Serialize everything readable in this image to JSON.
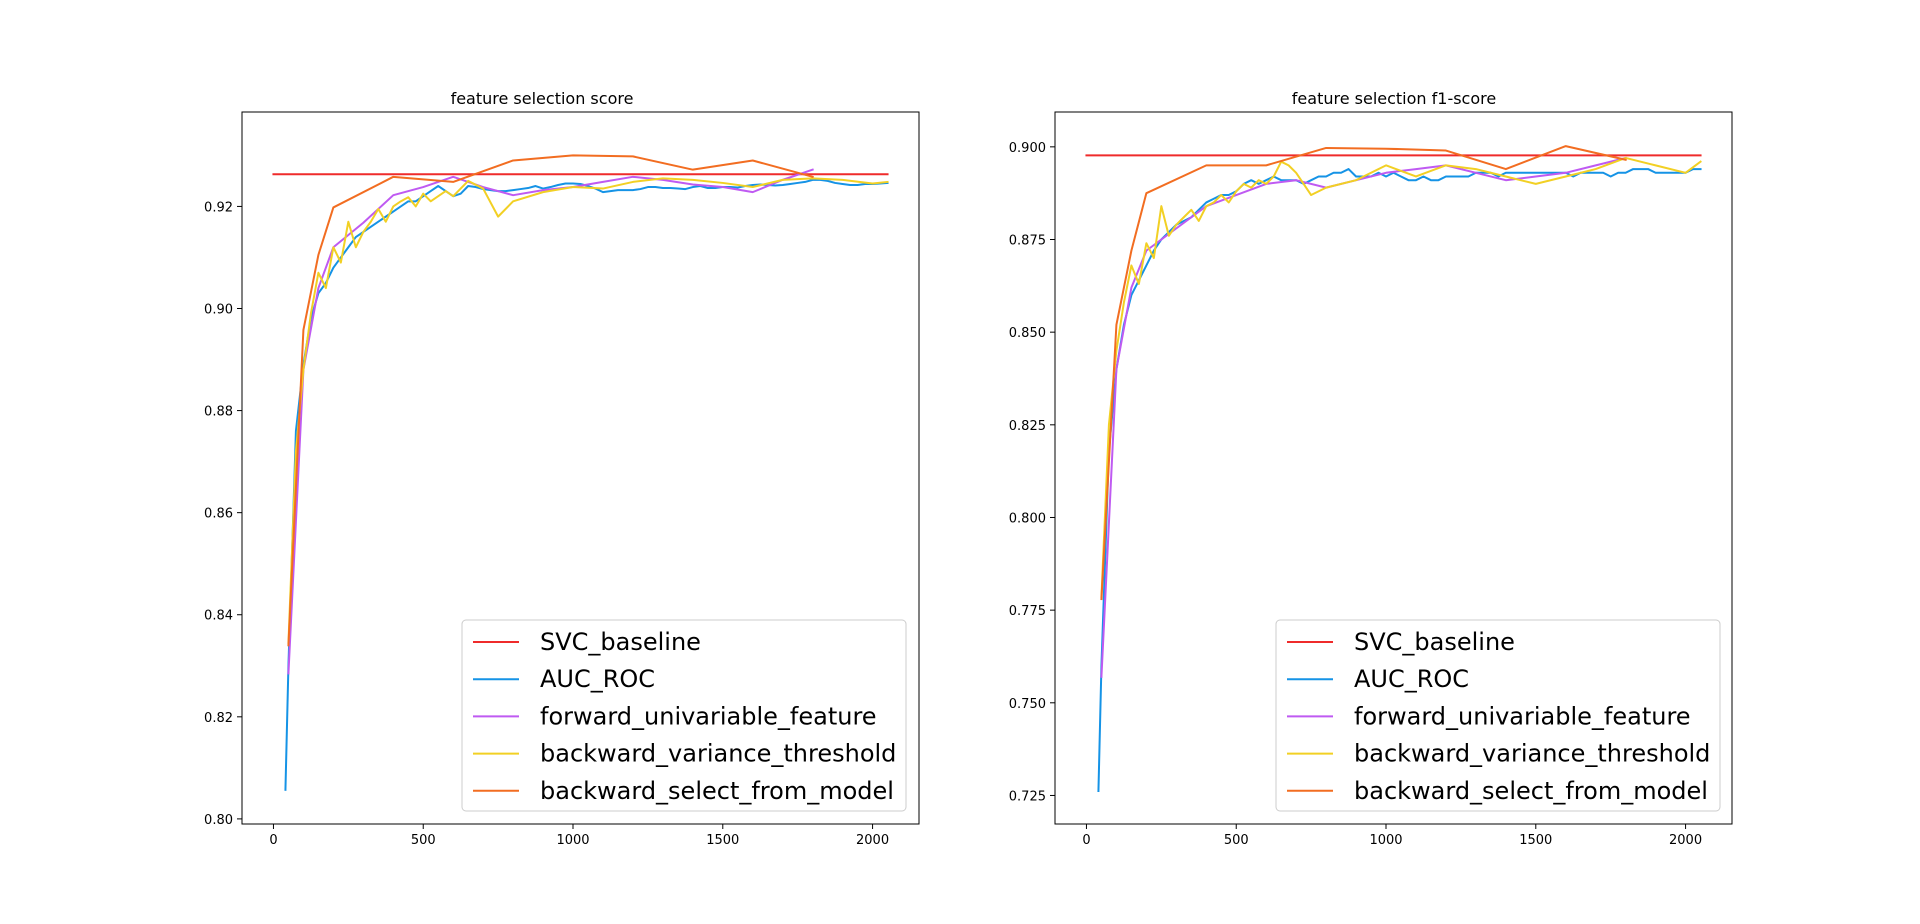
{
  "figure": {
    "background": "#ffffff"
  },
  "chart_data": [
    {
      "type": "line",
      "title": "feature selection score",
      "xlabel": "",
      "ylabel": "",
      "xlim": [
        -105,
        2155
      ],
      "ylim": [
        0.799,
        0.9385
      ],
      "xticks": [
        0,
        500,
        1000,
        1500,
        2000
      ],
      "yticks": [
        0.8,
        0.82,
        0.84,
        0.86,
        0.88,
        0.9,
        0.92
      ],
      "ytick_labels": [
        "0.80",
        "0.82",
        "0.84",
        "0.86",
        "0.88",
        "0.90",
        "0.92"
      ],
      "grid": false,
      "legend_position": "lower right",
      "series": [
        {
          "name": "SVC_baseline",
          "color": "#ef2b2b",
          "x": [
            0,
            2050
          ],
          "y": [
            0.9263,
            0.9263
          ]
        },
        {
          "name": "AUC_ROC",
          "color": "#1593e6",
          "x": [
            40,
            50,
            75,
            100,
            125,
            150,
            175,
            200,
            225,
            250,
            275,
            300,
            325,
            350,
            375,
            400,
            425,
            450,
            475,
            500,
            525,
            550,
            575,
            600,
            625,
            650,
            675,
            700,
            725,
            750,
            775,
            800,
            825,
            850,
            875,
            900,
            925,
            950,
            975,
            1000,
            1025,
            1050,
            1075,
            1100,
            1125,
            1150,
            1175,
            1200,
            1225,
            1250,
            1275,
            1300,
            1325,
            1350,
            1375,
            1400,
            1425,
            1450,
            1475,
            1500,
            1525,
            1550,
            1575,
            1600,
            1625,
            1650,
            1675,
            1700,
            1725,
            1750,
            1775,
            1800,
            1825,
            1850,
            1875,
            1900,
            1925,
            1950,
            1975,
            2000,
            2025,
            2050
          ],
          "y": [
            0.8057,
            0.83,
            0.876,
            0.889,
            0.898,
            0.903,
            0.905,
            0.908,
            0.91,
            0.912,
            0.914,
            0.915,
            0.916,
            0.917,
            0.918,
            0.919,
            0.92,
            0.921,
            0.921,
            0.922,
            0.923,
            0.924,
            0.923,
            0.922,
            0.9225,
            0.924,
            0.9238,
            0.9234,
            0.9232,
            0.923,
            0.923,
            0.9232,
            0.9234,
            0.9236,
            0.924,
            0.9235,
            0.9238,
            0.9242,
            0.9245,
            0.9245,
            0.9244,
            0.924,
            0.9235,
            0.9228,
            0.923,
            0.9232,
            0.9232,
            0.9232,
            0.9234,
            0.9238,
            0.9238,
            0.9236,
            0.9236,
            0.9235,
            0.9234,
            0.9238,
            0.924,
            0.9236,
            0.9236,
            0.9238,
            0.9238,
            0.9237,
            0.924,
            0.9242,
            0.9243,
            0.9242,
            0.9241,
            0.9242,
            0.9244,
            0.9246,
            0.9248,
            0.9252,
            0.9252,
            0.925,
            0.9246,
            0.9244,
            0.9242,
            0.9242,
            0.9244,
            0.9244,
            0.9245,
            0.9246
          ]
        },
        {
          "name": "forward_univariable_feature",
          "color": "#bf5af2",
          "x": [
            50,
            100,
            150,
            200,
            300,
            400,
            500,
            600,
            700,
            800,
            900,
            1000,
            1100,
            1200,
            1300,
            1400,
            1500,
            1600,
            1700,
            1800
          ],
          "y": [
            0.8285,
            0.888,
            0.904,
            0.912,
            0.9168,
            0.9222,
            0.9238,
            0.9258,
            0.9238,
            0.9222,
            0.9232,
            0.9238,
            0.9248,
            0.9258,
            0.9252,
            0.9243,
            0.9238,
            0.9228,
            0.9252,
            0.9272
          ]
        },
        {
          "name": "backward_variance_threshold",
          "color": "#f2d024",
          "x": [
            50,
            75,
            100,
            125,
            150,
            175,
            200,
            225,
            250,
            275,
            300,
            325,
            350,
            375,
            400,
            425,
            450,
            475,
            500,
            525,
            550,
            575,
            600,
            650,
            700,
            750,
            800,
            900,
            1000,
            1100,
            1200,
            1300,
            1400,
            1500,
            1600,
            1700,
            1800,
            1900,
            2000,
            2050
          ],
          "y": [
            0.8345,
            0.872,
            0.888,
            0.899,
            0.907,
            0.904,
            0.912,
            0.909,
            0.917,
            0.912,
            0.915,
            0.917,
            0.9195,
            0.917,
            0.92,
            0.921,
            0.9218,
            0.92,
            0.9225,
            0.921,
            0.922,
            0.923,
            0.922,
            0.925,
            0.9235,
            0.918,
            0.921,
            0.9228,
            0.9238,
            0.9235,
            0.9248,
            0.9255,
            0.9252,
            0.9246,
            0.9238,
            0.9252,
            0.9255,
            0.9252,
            0.9245,
            0.9248
          ]
        },
        {
          "name": "backward_select_from_model",
          "color": "#f26d21",
          "x": [
            50,
            100,
            150,
            200,
            400,
            600,
            800,
            1000,
            1200,
            1400,
            1600,
            1800
          ],
          "y": [
            0.834,
            0.8958,
            0.9105,
            0.9198,
            0.9258,
            0.9248,
            0.929,
            0.93,
            0.9298,
            0.9272,
            0.929,
            0.9258
          ]
        }
      ]
    },
    {
      "type": "line",
      "title": "feature selection f1-score",
      "xlabel": "",
      "ylabel": "",
      "xlim": [
        -105,
        2155
      ],
      "ylim": [
        0.7173,
        0.9094
      ],
      "xticks": [
        0,
        500,
        1000,
        1500,
        2000
      ],
      "yticks": [
        0.725,
        0.75,
        0.775,
        0.8,
        0.825,
        0.85,
        0.875,
        0.9
      ],
      "ytick_labels": [
        "0.725",
        "0.750",
        "0.775",
        "0.800",
        "0.825",
        "0.850",
        "0.875",
        "0.900"
      ],
      "grid": false,
      "legend_position": "lower right",
      "series": [
        {
          "name": "SVC_baseline",
          "color": "#ef2b2b",
          "x": [
            0,
            2050
          ],
          "y": [
            0.8977,
            0.8977
          ]
        },
        {
          "name": "AUC_ROC",
          "color": "#1593e6",
          "x": [
            40,
            50,
            75,
            100,
            125,
            150,
            175,
            200,
            225,
            250,
            275,
            300,
            325,
            350,
            375,
            400,
            425,
            450,
            475,
            500,
            525,
            550,
            575,
            600,
            625,
            650,
            675,
            700,
            725,
            750,
            775,
            800,
            825,
            850,
            875,
            900,
            925,
            950,
            975,
            1000,
            1025,
            1050,
            1075,
            1100,
            1125,
            1150,
            1175,
            1200,
            1225,
            1250,
            1275,
            1300,
            1325,
            1350,
            1375,
            1400,
            1425,
            1450,
            1475,
            1500,
            1525,
            1550,
            1575,
            1600,
            1625,
            1650,
            1675,
            1700,
            1725,
            1750,
            1775,
            1800,
            1825,
            1850,
            1875,
            1900,
            1925,
            1950,
            1975,
            2000,
            2025,
            2050
          ],
          "y": [
            0.7262,
            0.76,
            0.818,
            0.84,
            0.852,
            0.86,
            0.864,
            0.868,
            0.872,
            0.875,
            0.877,
            0.879,
            0.88,
            0.881,
            0.883,
            0.885,
            0.886,
            0.887,
            0.887,
            0.888,
            0.89,
            0.891,
            0.89,
            0.891,
            0.892,
            0.891,
            0.891,
            0.891,
            0.89,
            0.891,
            0.892,
            0.892,
            0.893,
            0.893,
            0.894,
            0.892,
            0.892,
            0.892,
            0.893,
            0.892,
            0.893,
            0.892,
            0.891,
            0.891,
            0.892,
            0.891,
            0.891,
            0.892,
            0.892,
            0.892,
            0.892,
            0.893,
            0.893,
            0.893,
            0.892,
            0.893,
            0.893,
            0.893,
            0.893,
            0.893,
            0.893,
            0.893,
            0.893,
            0.893,
            0.892,
            0.893,
            0.893,
            0.893,
            0.893,
            0.892,
            0.893,
            0.893,
            0.894,
            0.894,
            0.894,
            0.893,
            0.893,
            0.893,
            0.893,
            0.893,
            0.894,
            0.894
          ]
        },
        {
          "name": "forward_univariable_feature",
          "color": "#bf5af2",
          "x": [
            50,
            100,
            150,
            200,
            300,
            400,
            500,
            600,
            700,
            800,
            900,
            1000,
            1100,
            1200,
            1300,
            1400,
            1500,
            1600,
            1700,
            1800
          ],
          "y": [
            0.757,
            0.84,
            0.862,
            0.872,
            0.878,
            0.884,
            0.887,
            0.89,
            0.891,
            0.889,
            0.891,
            0.893,
            0.894,
            0.895,
            0.893,
            0.891,
            0.892,
            0.893,
            0.895,
            0.897
          ]
        },
        {
          "name": "backward_variance_threshold",
          "color": "#f2d024",
          "x": [
            50,
            75,
            100,
            125,
            150,
            175,
            200,
            225,
            250,
            275,
            300,
            325,
            350,
            375,
            400,
            425,
            450,
            475,
            500,
            525,
            550,
            575,
            600,
            625,
            650,
            675,
            700,
            750,
            800,
            900,
            1000,
            1100,
            1200,
            1300,
            1400,
            1500,
            1600,
            1700,
            1800,
            1900,
            2000,
            2050
          ],
          "y": [
            0.7785,
            0.825,
            0.845,
            0.858,
            0.868,
            0.863,
            0.874,
            0.87,
            0.884,
            0.876,
            0.879,
            0.881,
            0.883,
            0.88,
            0.884,
            0.885,
            0.887,
            0.885,
            0.888,
            0.89,
            0.889,
            0.891,
            0.89,
            0.892,
            0.896,
            0.895,
            0.893,
            0.887,
            0.889,
            0.891,
            0.895,
            0.892,
            0.895,
            0.894,
            0.892,
            0.89,
            0.892,
            0.894,
            0.897,
            0.895,
            0.893,
            0.896
          ]
        },
        {
          "name": "backward_select_from_model",
          "color": "#f26d21",
          "x": [
            50,
            100,
            150,
            200,
            400,
            600,
            800,
            1000,
            1200,
            1400,
            1600,
            1800
          ],
          "y": [
            0.778,
            0.852,
            0.872,
            0.8875,
            0.895,
            0.895,
            0.8997,
            0.8995,
            0.899,
            0.894,
            0.9002,
            0.8965
          ]
        }
      ]
    }
  ]
}
